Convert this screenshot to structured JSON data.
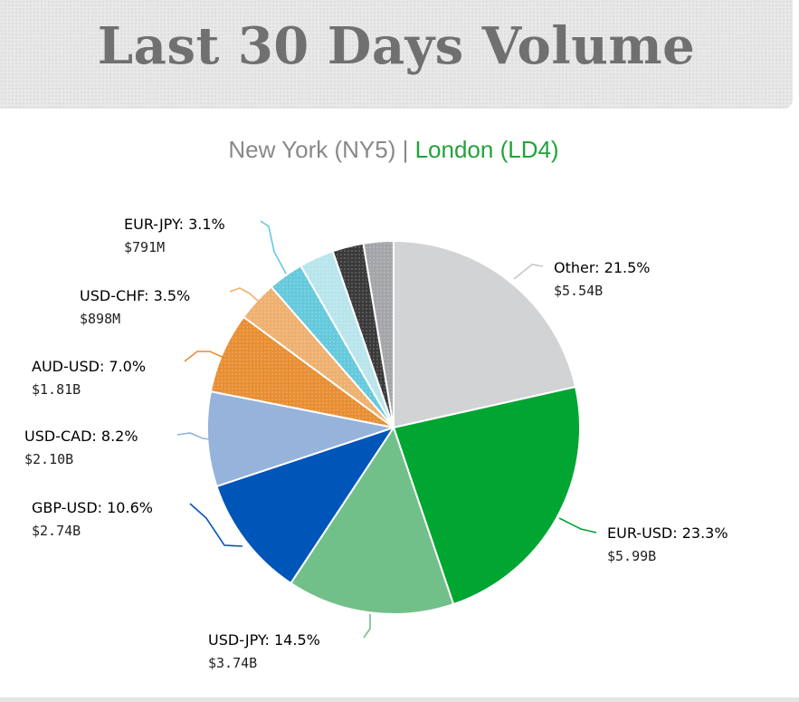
{
  "header": {
    "title": "Last 30 Days Volume"
  },
  "subtitle": {
    "left": "New York (NY5)",
    "separator": "|",
    "right": "London (LD4)",
    "right_color": "#22a33a"
  },
  "chart_data": {
    "type": "pie",
    "title": "Last 30 Days Volume",
    "subtitle": "New York (NY5) | London (LD4)",
    "slices": [
      {
        "name": "Other",
        "percent": 21.5,
        "label": "21.5%",
        "value": "$5.54B",
        "color": "#d1d3d4"
      },
      {
        "name": "EUR-USD",
        "percent": 23.3,
        "label": "23.3%",
        "value": "$5.99B",
        "color": "#00a532"
      },
      {
        "name": "USD-JPY",
        "percent": 14.5,
        "label": "14.5%",
        "value": "$3.74B",
        "color": "#72c089"
      },
      {
        "name": "GBP-USD",
        "percent": 10.6,
        "label": "10.6%",
        "value": "$2.74B",
        "color": "#0055b8"
      },
      {
        "name": "USD-CAD",
        "percent": 8.2,
        "label": "8.2%",
        "value": "$2.10B",
        "color": "#95b3db"
      },
      {
        "name": "AUD-USD",
        "percent": 7.0,
        "label": "7.0%",
        "value": "$1.81B",
        "color": "#e88e33"
      },
      {
        "name": "USD-CHF",
        "percent": 3.5,
        "label": "3.5%",
        "value": "$898M",
        "color": "#eeb06f"
      },
      {
        "name": "EUR-JPY",
        "percent": 3.1,
        "label": "3.1%",
        "value": "$791M",
        "color": "#64c9dc"
      },
      {
        "name": "",
        "percent": 3.0,
        "label": "",
        "value": "",
        "color": "#b8e5ec"
      },
      {
        "name": "",
        "percent": 2.7,
        "label": "",
        "value": "",
        "color": "#3a3a3a"
      },
      {
        "name": "",
        "percent": 2.6,
        "label": "",
        "value": "",
        "color": "#a3a5a8"
      }
    ]
  }
}
